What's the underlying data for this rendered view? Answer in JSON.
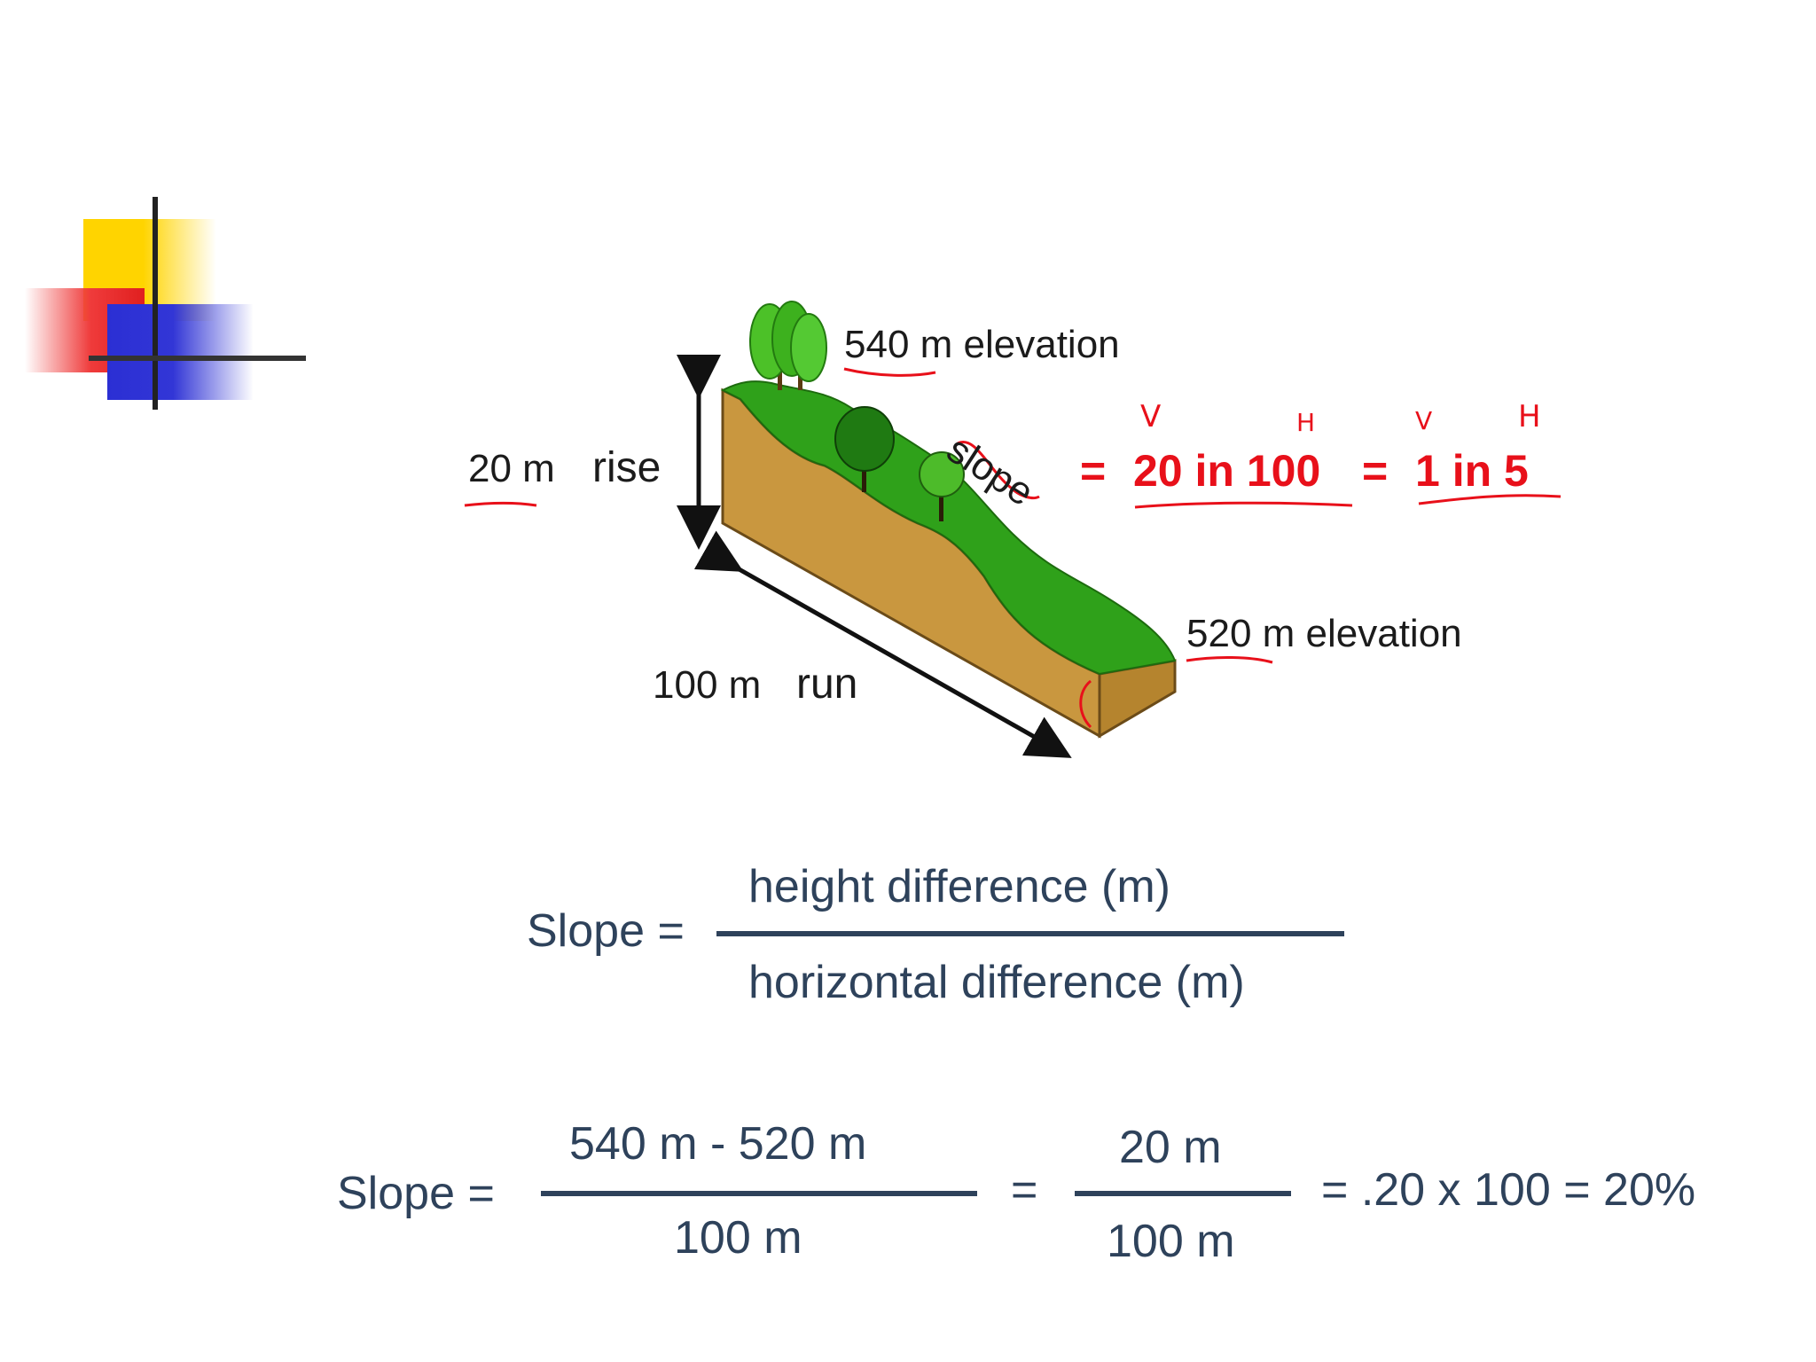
{
  "diagram": {
    "elevation_top": "540 m elevation",
    "elevation_bottom": "520 m elevation",
    "rise_value": "20 m",
    "rise_word": "rise",
    "run_value": "100 m",
    "run_word": "run",
    "slope_word": "slope"
  },
  "annotation": {
    "equals_1": "=",
    "ratio_1": "20 in 100",
    "equals_2": "=",
    "ratio_2": "1 in 5",
    "mark_v1": "V",
    "mark_h1": "H",
    "mark_v2": "V",
    "mark_h2": "H"
  },
  "formula_1": {
    "lhs": "Slope =",
    "numerator": "height difference (m)",
    "denominator": "horizontal difference (m)"
  },
  "formula_2": {
    "lhs": "Slope =",
    "num_1": "540 m - 520 m",
    "den_1": "100 m",
    "equals": "=",
    "num_2": "20 m",
    "den_2": "100 m",
    "result": "=  .20 x 100 = 20%"
  },
  "colors": {
    "grass": "#2fa11a",
    "soil": "#c9973f",
    "annotation": "#e8101a",
    "formula": "#2e425b"
  }
}
